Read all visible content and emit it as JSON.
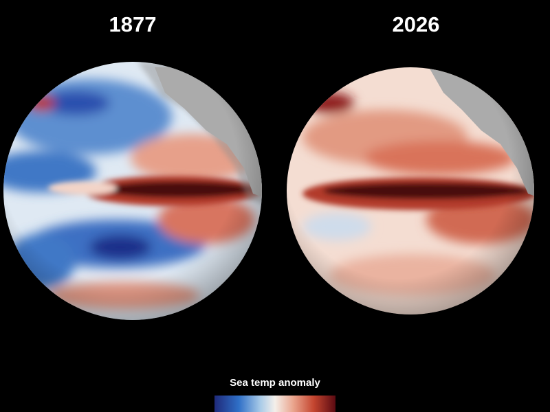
{
  "panels": [
    {
      "title": "1877"
    },
    {
      "title": "2026"
    }
  ],
  "legend": {
    "title": "Sea temp anomaly"
  }
}
